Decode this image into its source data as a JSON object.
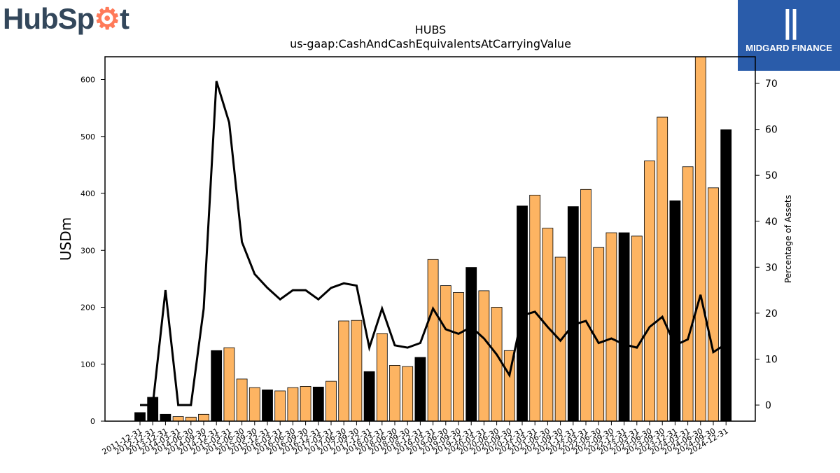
{
  "logos": {
    "left_text_a": "HubSp",
    "left_text_b": "t",
    "right_name": "MIDGARD FINANCE"
  },
  "chart_data": {
    "type": "bar",
    "title": "HUBS",
    "subtitle": "us-gaap:CashAndCashEquivalentsAtCarryingValue",
    "ylabel": "USDm",
    "y2label": "Percentage of Assets",
    "ylim": [
      0,
      640
    ],
    "y2lim": [
      -3.5,
      75.8
    ],
    "yticks": [
      0,
      100,
      200,
      300,
      400,
      500,
      600
    ],
    "y2ticks": [
      0,
      10,
      20,
      30,
      40,
      50,
      60,
      70
    ],
    "colors": {
      "annual": "#000000",
      "quarterly": "#fdb462",
      "line": "#000000"
    },
    "categories": [
      "2011-12-31",
      "2012-12-31",
      "2013-12-31",
      "2014-03-31",
      "2014-06-30",
      "2014-09-30",
      "2014-12-31",
      "2015-03-31",
      "2015-06-30",
      "2015-09-30",
      "2015-12-31",
      "2016-03-31",
      "2016-06-30",
      "2016-09-30",
      "2016-12-31",
      "2017-03-31",
      "2017-06-30",
      "2017-09-30",
      "2017-12-31",
      "2018-03-31",
      "2018-06-30",
      "2018-09-30",
      "2018-12-31",
      "2019-03-31",
      "2019-06-30",
      "2019-09-30",
      "2019-12-31",
      "2020-03-31",
      "2020-06-30",
      "2020-09-30",
      "2020-12-31",
      "2021-03-31",
      "2021-06-30",
      "2021-09-30",
      "2021-12-31",
      "2022-03-31",
      "2022-06-30",
      "2022-09-30",
      "2022-12-31",
      "2023-03-31",
      "2023-06-30",
      "2023-09-30",
      "2023-12-31",
      "2024-03-31",
      "2024-06-30",
      "2024-09-30",
      "2024-12-31"
    ],
    "values": [
      15,
      42,
      12,
      8,
      7,
      12,
      124,
      129,
      74,
      59,
      55,
      53,
      59,
      61,
      60,
      70,
      176,
      177,
      87,
      154,
      98,
      96,
      112,
      284,
      238,
      226,
      270,
      229,
      200,
      124,
      378,
      397,
      339,
      288,
      377,
      407,
      305,
      331,
      331,
      325,
      457,
      534,
      387,
      447,
      640,
      410,
      512
    ],
    "annual": [
      true,
      true,
      true,
      false,
      false,
      false,
      true,
      false,
      false,
      false,
      true,
      false,
      false,
      false,
      true,
      false,
      false,
      false,
      true,
      false,
      false,
      false,
      true,
      false,
      false,
      false,
      true,
      false,
      false,
      false,
      true,
      false,
      false,
      false,
      true,
      false,
      false,
      false,
      true,
      false,
      false,
      false,
      true,
      false,
      false,
      false,
      true
    ],
    "pct_assets": [
      0,
      0,
      25,
      0,
      0,
      21,
      70.5,
      61.5,
      35.5,
      28.5,
      25.5,
      23,
      25,
      25,
      23,
      25.5,
      26.5,
      26,
      12.5,
      21,
      13,
      12.5,
      13.5,
      21,
      16.5,
      15.5,
      17,
      14.5,
      11,
      6.5,
      19.5,
      20.3,
      17,
      14,
      17.5,
      18.3,
      13.5,
      14.5,
      13.2,
      12.5,
      17,
      19.2,
      13,
      14.3,
      24,
      11.5,
      13.3
    ]
  }
}
